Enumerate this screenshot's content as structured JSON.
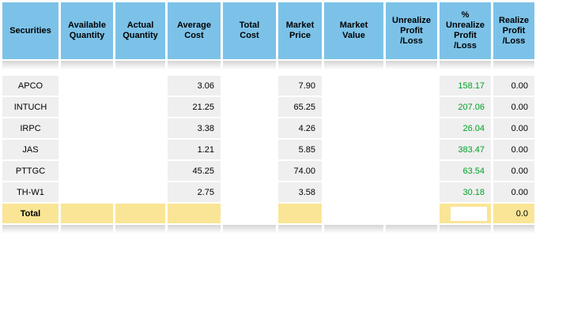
{
  "table": {
    "field_order": [
      "security",
      "available_quantity",
      "actual_quantity",
      "average_cost",
      "total_cost",
      "market_price",
      "market_value",
      "unrealized_profit_loss",
      "pct_unrealized_profit_loss",
      "realized_profit_loss"
    ],
    "columns": [
      {
        "key": "securities",
        "label": "Securities"
      },
      {
        "key": "available-quantity",
        "label": "Available\nQuantity"
      },
      {
        "key": "actual-quantity",
        "label": "Actual\nQuantity"
      },
      {
        "key": "average-cost",
        "label": "Average\nCost"
      },
      {
        "key": "total-cost",
        "label": "Total\nCost"
      },
      {
        "key": "market-price",
        "label": "Market\nPrice"
      },
      {
        "key": "market-value",
        "label": "Market\nValue"
      },
      {
        "key": "unrealize-profit-loss",
        "label": "Unrealize\nProfit\n/Loss"
      },
      {
        "key": "pct-unrealize-profit-loss",
        "label": "%\nUnrealize\nProfit\n/Loss"
      },
      {
        "key": "realize-profit-loss",
        "label": "Realize\nProfit\n/Loss"
      }
    ],
    "rows": [
      {
        "security": "APCO",
        "available_quantity": "",
        "actual_quantity": "",
        "average_cost": "3.06",
        "total_cost": "",
        "market_price": "7.90",
        "market_value": "",
        "unrealized_profit_loss": "",
        "pct_unrealized_profit_loss": "158.17",
        "realized_profit_loss": "0.00"
      },
      {
        "security": "INTUCH",
        "available_quantity": "",
        "actual_quantity": "",
        "average_cost": "21.25",
        "total_cost": "",
        "market_price": "65.25",
        "market_value": "",
        "unrealized_profit_loss": "",
        "pct_unrealized_profit_loss": "207.06",
        "realized_profit_loss": "0.00"
      },
      {
        "security": "IRPC",
        "available_quantity": "",
        "actual_quantity": "",
        "average_cost": "3.38",
        "total_cost": "",
        "market_price": "4.26",
        "market_value": "",
        "unrealized_profit_loss": "",
        "pct_unrealized_profit_loss": "26.04",
        "realized_profit_loss": "0.00"
      },
      {
        "security": "JAS",
        "available_quantity": "",
        "actual_quantity": "",
        "average_cost": "1.21",
        "total_cost": "",
        "market_price": "5.85",
        "market_value": "",
        "unrealized_profit_loss": "",
        "pct_unrealized_profit_loss": "383.47",
        "realized_profit_loss": "0.00"
      },
      {
        "security": "PTTGC",
        "available_quantity": "",
        "actual_quantity": "",
        "average_cost": "45.25",
        "total_cost": "",
        "market_price": "74.00",
        "market_value": "",
        "unrealized_profit_loss": "",
        "pct_unrealized_profit_loss": "63.54",
        "realized_profit_loss": "0.00"
      },
      {
        "security": "TH-W1",
        "available_quantity": "",
        "actual_quantity": "",
        "average_cost": "2.75",
        "total_cost": "",
        "market_price": "3.58",
        "market_value": "",
        "unrealized_profit_loss": "",
        "pct_unrealized_profit_loss": "30.18",
        "realized_profit_loss": "0.00"
      }
    ],
    "total_row": {
      "label": "Total",
      "realized_profit_loss": "0.0"
    }
  },
  "colors": {
    "header_bg": "#7CC2E8",
    "row_bg": "#EFEFEF",
    "total_bg": "#FAE596",
    "positive": "#00A226",
    "text": "#000000"
  }
}
